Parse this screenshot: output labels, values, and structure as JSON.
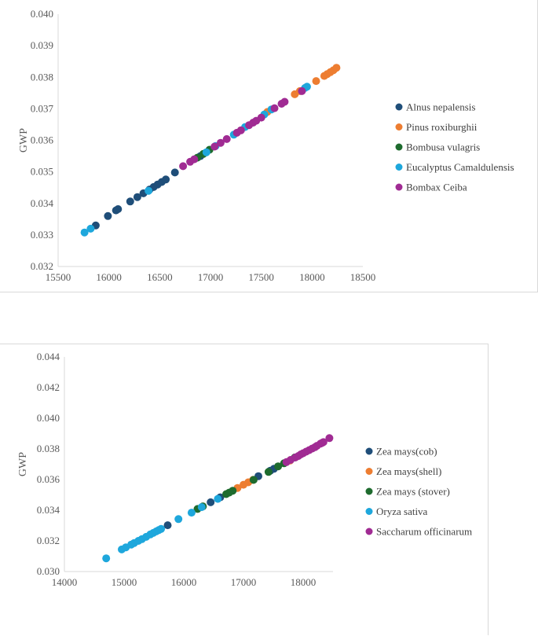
{
  "chart_data": [
    {
      "type": "scatter",
      "title": "",
      "xlabel": "",
      "ylabel": "GWP",
      "xlim": [
        15500,
        18500
      ],
      "ylim": [
        0.032,
        0.04
      ],
      "xticks": [
        "15500",
        "16000",
        "16500",
        "17000",
        "17500",
        "18000",
        "18500"
      ],
      "yticks": [
        "0.032",
        "0.033",
        "0.034",
        "0.035",
        "0.036",
        "0.037",
        "0.038",
        "0.039",
        "0.040"
      ],
      "legend": "right",
      "series": [
        {
          "name": "Alnus nepalensis",
          "color": "#1f4e79",
          "points": [
            [
              15870,
              0.0333
            ],
            [
              15990,
              0.0336
            ],
            [
              16070,
              0.03378
            ],
            [
              16090,
              0.03382
            ],
            [
              16210,
              0.03406
            ],
            [
              16280,
              0.0342
            ],
            [
              16340,
              0.03432
            ],
            [
              16400,
              0.03444
            ],
            [
              16440,
              0.03452
            ],
            [
              16480,
              0.0346
            ],
            [
              16520,
              0.03468
            ],
            [
              16560,
              0.03476
            ],
            [
              16650,
              0.03498
            ],
            [
              16900,
              0.0355
            ]
          ]
        },
        {
          "name": "Pinus roxiburghii",
          "color": "#ed7d31",
          "points": [
            [
              17560,
              0.0369
            ],
            [
              17830,
              0.03746
            ],
            [
              17880,
              0.03756
            ],
            [
              18040,
              0.03788
            ],
            [
              18120,
              0.03804
            ],
            [
              18150,
              0.0381
            ],
            [
              18180,
              0.03816
            ],
            [
              18210,
              0.03822
            ],
            [
              18240,
              0.0383
            ]
          ]
        },
        {
          "name": "Bombusa vulagris",
          "color": "#1e6b2e",
          "points": [
            [
              16870,
              0.03545
            ],
            [
              16930,
              0.03557
            ],
            [
              16990,
              0.0357
            ]
          ]
        },
        {
          "name": "Eucalyptus Camaldulensis",
          "color": "#1ea7dc",
          "points": [
            [
              15760,
              0.03308
            ],
            [
              15820,
              0.0332
            ],
            [
              16390,
              0.0344
            ],
            [
              16960,
              0.03562
            ],
            [
              17050,
              0.03582
            ],
            [
              17230,
              0.03618
            ],
            [
              17340,
              0.03642
            ],
            [
              17530,
              0.03682
            ],
            [
              17600,
              0.03698
            ],
            [
              17930,
              0.03766
            ],
            [
              17950,
              0.0377
            ]
          ]
        },
        {
          "name": "Bombax Ceiba",
          "color": "#a02b93",
          "points": [
            [
              16730,
              0.03518
            ],
            [
              16800,
              0.03532
            ],
            [
              16840,
              0.0354
            ],
            [
              17040,
              0.0358
            ],
            [
              17100,
              0.03592
            ],
            [
              17160,
              0.03604
            ],
            [
              17260,
              0.03624
            ],
            [
              17300,
              0.03632
            ],
            [
              17380,
              0.03648
            ],
            [
              17420,
              0.03656
            ],
            [
              17450,
              0.03662
            ],
            [
              17500,
              0.03672
            ],
            [
              17630,
              0.03702
            ],
            [
              17700,
              0.03716
            ],
            [
              17730,
              0.03722
            ],
            [
              17900,
              0.03756
            ]
          ]
        }
      ]
    },
    {
      "type": "scatter",
      "title": "",
      "xlabel": "",
      "ylabel": "GWP",
      "xlim": [
        14000,
        18500
      ],
      "ylim": [
        0.03,
        0.044
      ],
      "xticks": [
        "14000",
        "15000",
        "16000",
        "17000",
        "18000"
      ],
      "yticks": [
        "0.030",
        "0.032",
        "0.034",
        "0.036",
        "0.038",
        "0.040",
        "0.042",
        "0.044"
      ],
      "legend": "right",
      "series": [
        {
          "name": "Zea mays(cob)",
          "color": "#1f4e79",
          "points": [
            [
              15730,
              0.03302
            ],
            [
              16450,
              0.03452
            ],
            [
              16610,
              0.03484
            ],
            [
              17250,
              0.03622
            ],
            [
              17450,
              0.03658
            ],
            [
              17510,
              0.0367
            ]
          ]
        },
        {
          "name": "Zea mays(shell)",
          "color": "#ed7d31",
          "points": [
            [
              16900,
              0.03545
            ],
            [
              17000,
              0.03566
            ],
            [
              17080,
              0.03582
            ],
            [
              17160,
              0.03598
            ],
            [
              17780,
              0.03724
            ]
          ]
        },
        {
          "name": "Zea mays (stover)",
          "color": "#1e6b2e",
          "points": [
            [
              16230,
              0.03408
            ],
            [
              16320,
              0.03425
            ],
            [
              16710,
              0.03505
            ],
            [
              16760,
              0.03515
            ],
            [
              16820,
              0.03527
            ],
            [
              17170,
              0.03598
            ],
            [
              17420,
              0.0365
            ],
            [
              17580,
              0.03686
            ],
            [
              17680,
              0.03706
            ],
            [
              17860,
              0.03744
            ]
          ]
        },
        {
          "name": "Oryza sativa",
          "color": "#1ea7dc",
          "points": [
            [
              14700,
              0.03086
            ],
            [
              14960,
              0.03144
            ],
            [
              15030,
              0.03158
            ],
            [
              15120,
              0.03176
            ],
            [
              15170,
              0.03186
            ],
            [
              15240,
              0.032
            ],
            [
              15300,
              0.03212
            ],
            [
              15370,
              0.03226
            ],
            [
              15440,
              0.03242
            ],
            [
              15490,
              0.03252
            ],
            [
              15540,
              0.03262
            ],
            [
              15580,
              0.0327
            ],
            [
              15620,
              0.03278
            ],
            [
              15910,
              0.03342
            ],
            [
              16130,
              0.03384
            ],
            [
              16300,
              0.0342
            ],
            [
              16570,
              0.03474
            ]
          ]
        },
        {
          "name": "Saccharum officinarum",
          "color": "#a02b93",
          "points": [
            [
              17720,
              0.03714
            ],
            [
              17790,
              0.03728
            ],
            [
              17870,
              0.03744
            ],
            [
              17920,
              0.03754
            ],
            [
              17960,
              0.03764
            ],
            [
              18000,
              0.03772
            ],
            [
              18050,
              0.03782
            ],
            [
              18100,
              0.03792
            ],
            [
              18150,
              0.03802
            ],
            [
              18200,
              0.03812
            ],
            [
              18230,
              0.0382
            ],
            [
              18290,
              0.03834
            ],
            [
              18320,
              0.0384
            ],
            [
              18340,
              0.03844
            ],
            [
              18440,
              0.0387
            ]
          ]
        }
      ]
    }
  ]
}
